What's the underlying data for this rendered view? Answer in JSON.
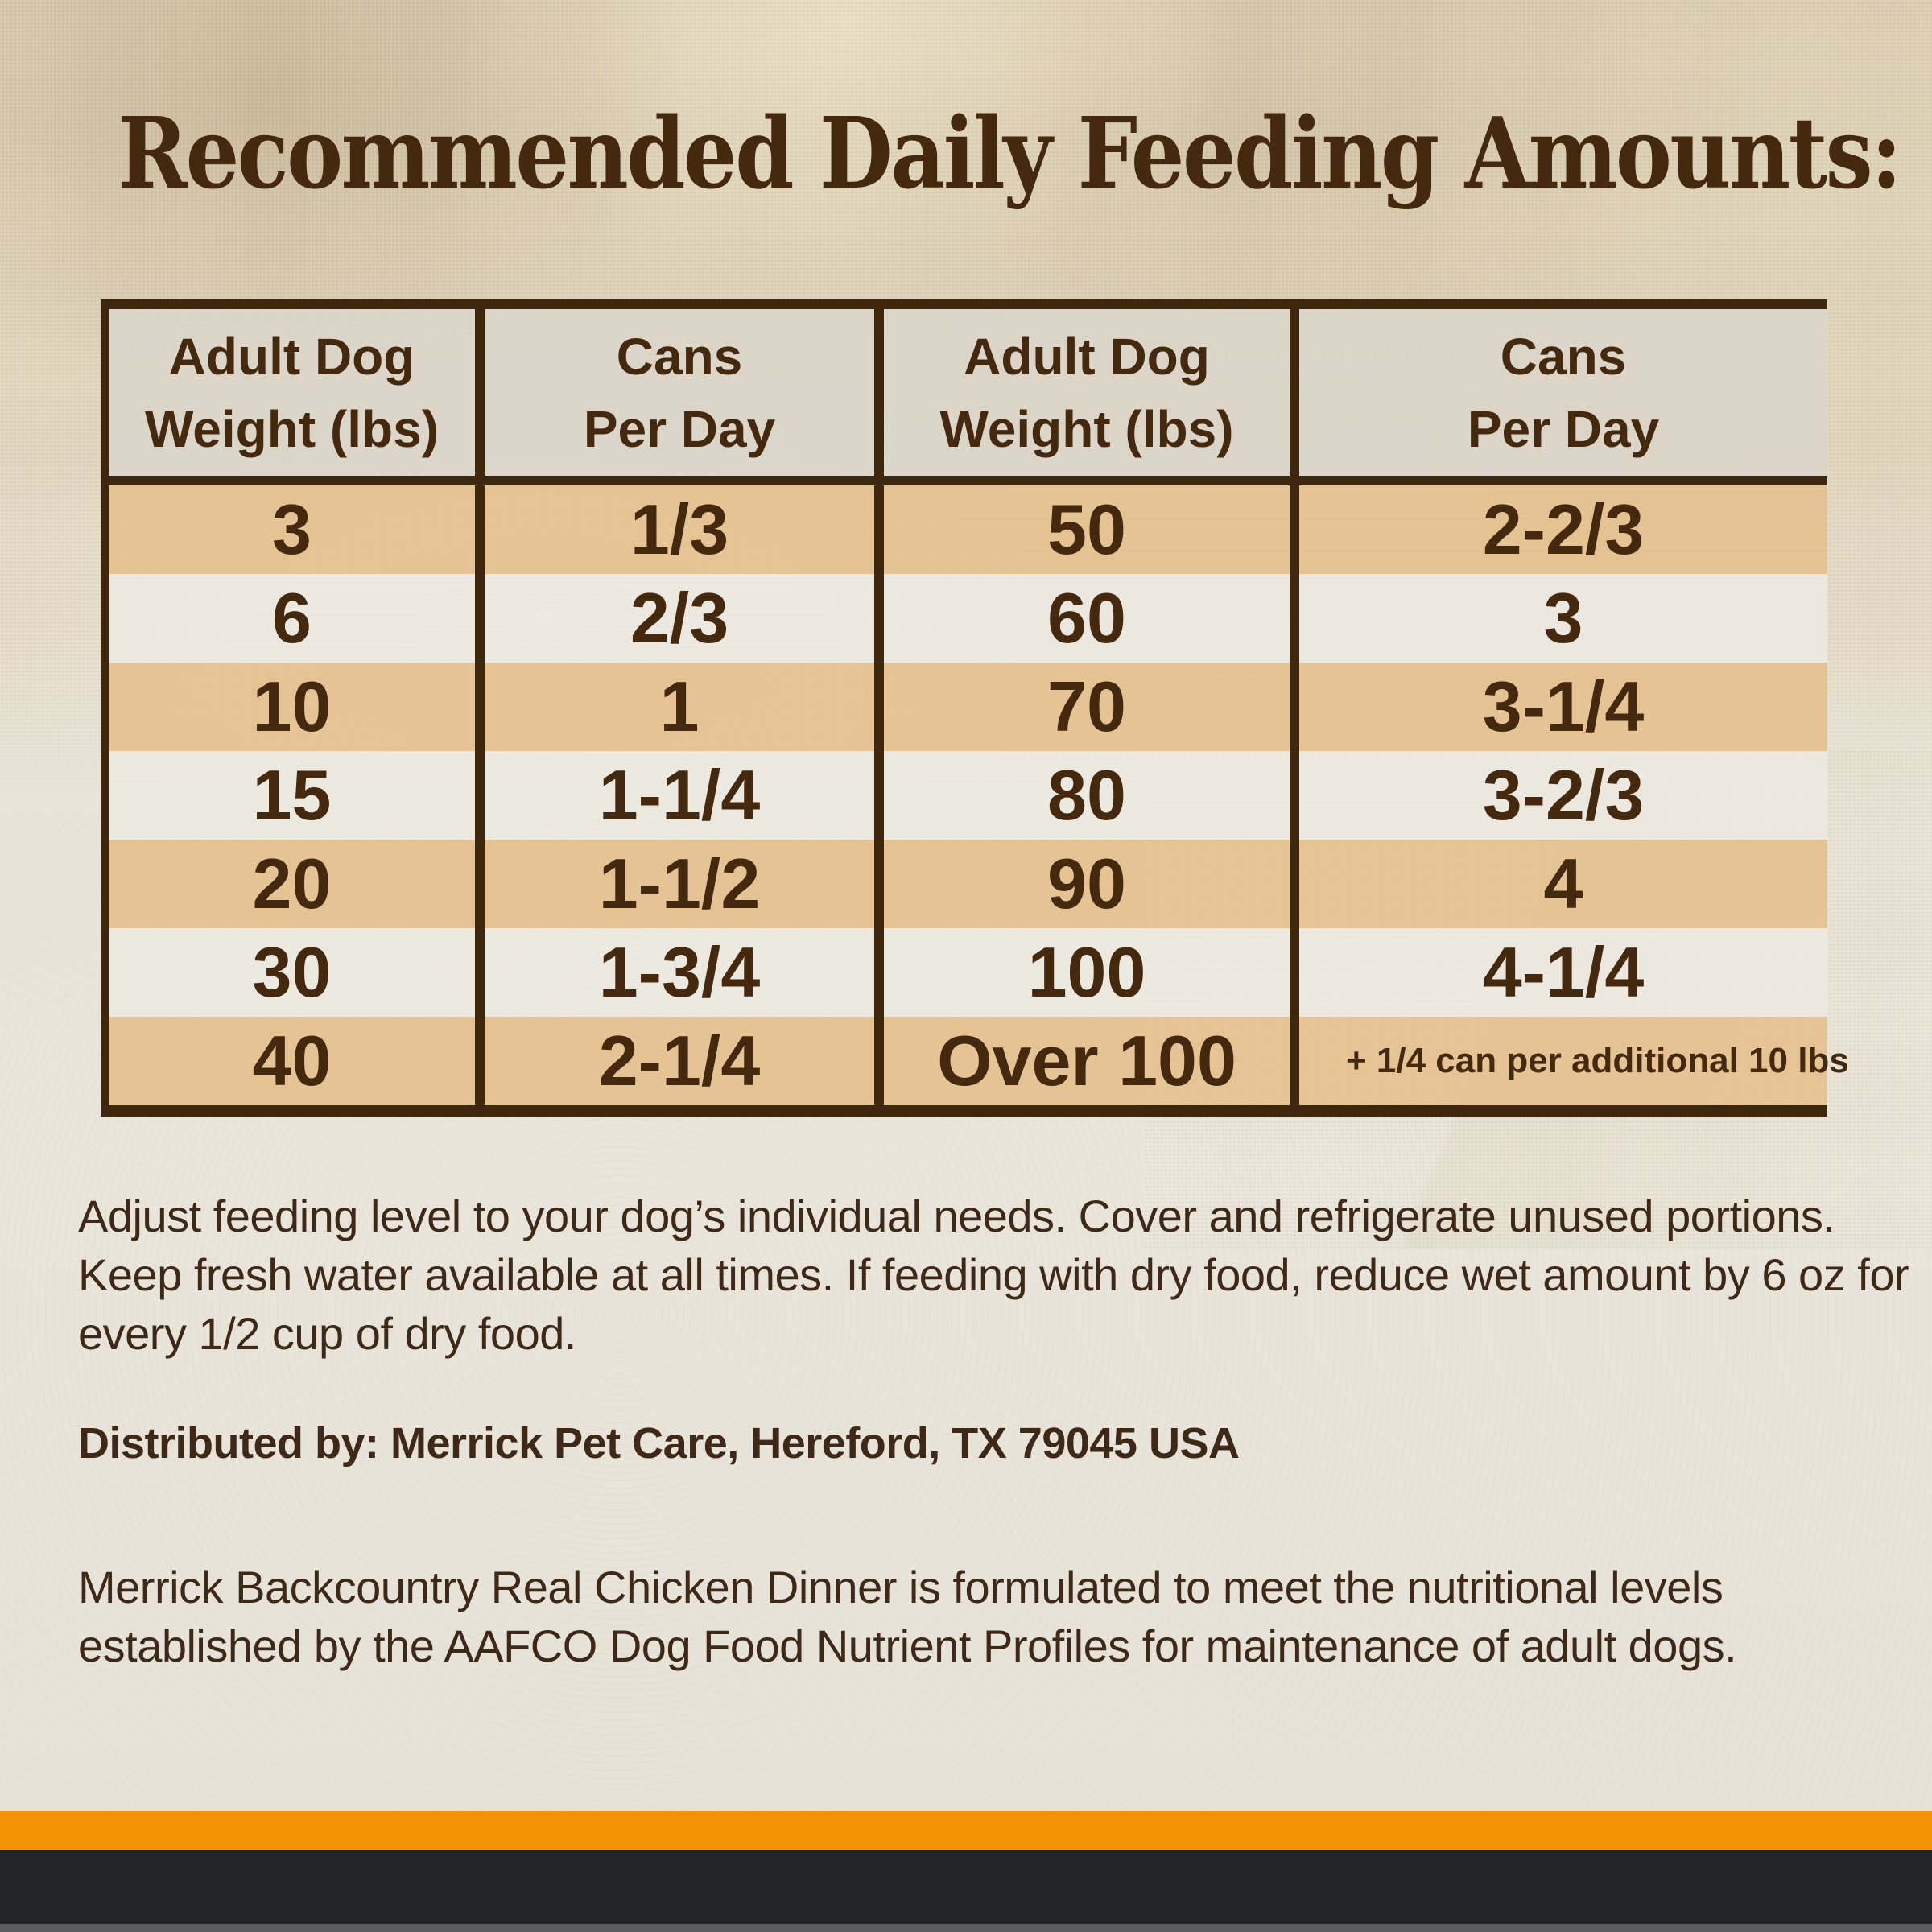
{
  "title": {
    "text": "Recommended Daily Feeding Amounts:"
  },
  "colors": {
    "text_brown": "#45290F",
    "table_border": "#3F270E",
    "stripe_tan": "#E5C18F",
    "stripe_light": "#ECE9E1",
    "header_bg": "#DBD5CA",
    "footer_orange": "#F29204",
    "footer_black": "#212528"
  },
  "table": {
    "headers": [
      {
        "line1": "Adult Dog",
        "line2": "Weight (lbs)"
      },
      {
        "line1": "Cans",
        "line2": "Per Day"
      },
      {
        "line1": "Adult Dog",
        "line2": "Weight (lbs)"
      },
      {
        "line1": "Cans",
        "line2": "Per Day"
      }
    ],
    "rows": [
      {
        "w1": "3",
        "c1": "1/3",
        "w2": "50",
        "c2": "2-2/3"
      },
      {
        "w1": "6",
        "c1": "2/3",
        "w2": "60",
        "c2": "3"
      },
      {
        "w1": "10",
        "c1": "1",
        "w2": "70",
        "c2": "3-1/4"
      },
      {
        "w1": "15",
        "c1": "1-1/4",
        "w2": "80",
        "c2": "3-2/3"
      },
      {
        "w1": "20",
        "c1": "1-1/2",
        "w2": "90",
        "c2": "4"
      },
      {
        "w1": "30",
        "c1": "1-3/4",
        "w2": "100",
        "c2": "4-1/4"
      },
      {
        "w1": "40",
        "c1": "2-1/4",
        "w2": "Over 100",
        "c2": "+ 1/4 can per additional 10 lbs"
      }
    ]
  },
  "notes": {
    "adjust": "Adjust feeding level to your dog’s individual needs. Cover and refrigerate unused portions. Keep fresh water available at all times. If feeding with dry food, reduce wet amount by 6 oz for every 1/2 cup of dry food.",
    "distributed": "Distributed by: Merrick Pet Care, Hereford, TX 79045 USA",
    "aafco": "Merrick Backcountry Real Chicken Dinner is formulated to meet the nutritional levels established by the AAFCO Dog Food Nutrient Profiles for maintenance of adult dogs."
  },
  "chart_data": {
    "type": "table",
    "title": "Recommended Daily Feeding Amounts",
    "columns": [
      "Adult Dog Weight (lbs)",
      "Cans Per Day"
    ],
    "rows": [
      [
        "3",
        "1/3"
      ],
      [
        "6",
        "2/3"
      ],
      [
        "10",
        "1"
      ],
      [
        "15",
        "1-1/4"
      ],
      [
        "20",
        "1-1/2"
      ],
      [
        "30",
        "1-3/4"
      ],
      [
        "40",
        "2-1/4"
      ],
      [
        "50",
        "2-2/3"
      ],
      [
        "60",
        "3"
      ],
      [
        "70",
        "3-1/4"
      ],
      [
        "80",
        "3-2/3"
      ],
      [
        "90",
        "4"
      ],
      [
        "100",
        "4-1/4"
      ],
      [
        "Over 100",
        "+ 1/4 can per additional 10 lbs"
      ]
    ]
  }
}
